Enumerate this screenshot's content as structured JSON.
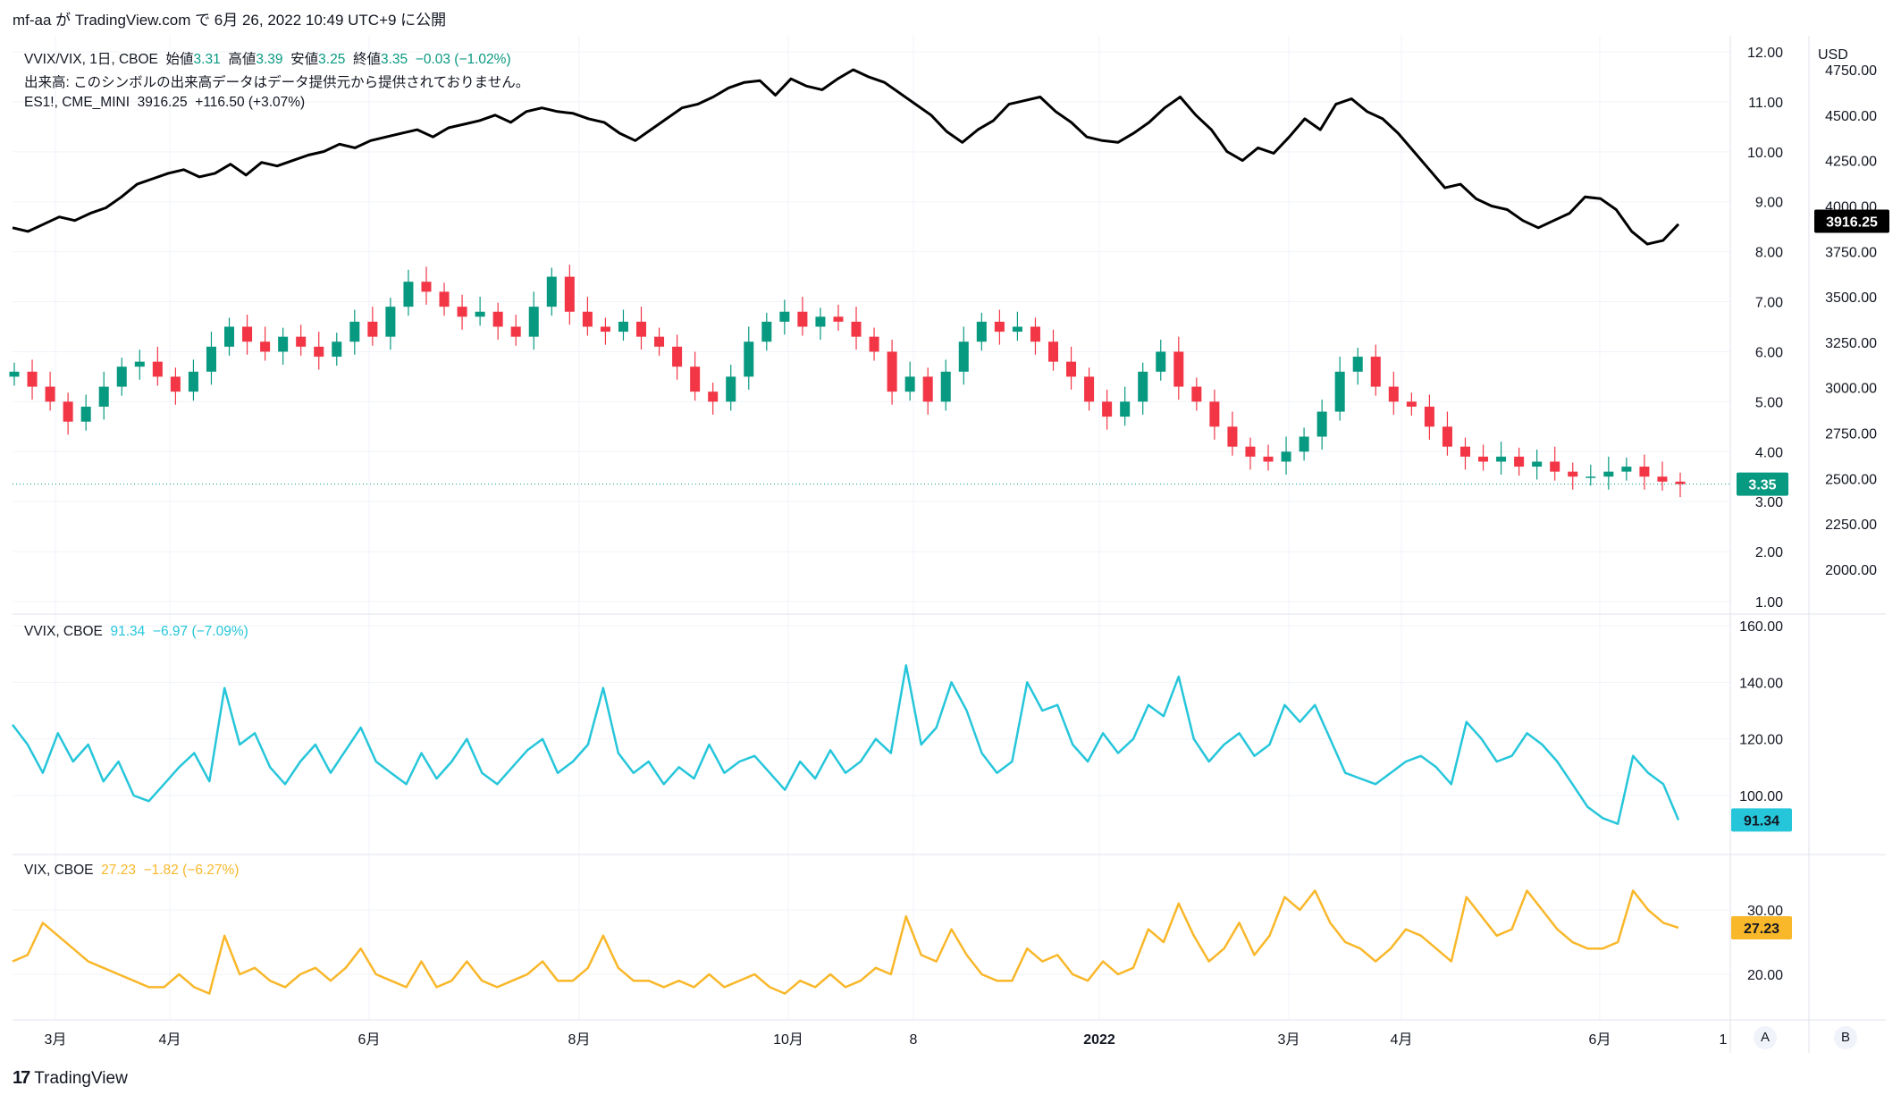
{
  "header": {
    "text": "mf-aa が TradingView.com で 6月 26, 2022 10:49 UTC+9 に公開"
  },
  "legend_main": {
    "symbol": "VVIX/VIX, 1日, CBOE",
    "open_label": "始値",
    "open": "3.31",
    "high_label": "高値",
    "high": "3.39",
    "low_label": "安値",
    "low": "3.25",
    "close_label": "終値",
    "close": "3.35",
    "change": "−0.03 (−1.02%)"
  },
  "legend_volume": "出来高: このシンボルの出来高データはデータ提供元から提供されておりません。",
  "legend_es": {
    "symbol": "ES1!, CME_MINI",
    "value": "3916.25",
    "change": "+116.50 (+3.07%)"
  },
  "legend_vvix": {
    "symbol": "VVIX, CBOE",
    "value": "91.34",
    "change": "−6.97 (−7.09%)"
  },
  "legend_vix": {
    "symbol": "VIX, CBOE",
    "value": "27.23",
    "change": "−1.82 (−6.27%)"
  },
  "axis": {
    "currency": "USD",
    "ratio_ticks": [
      "12.00",
      "11.00",
      "10.00",
      "9.00",
      "8.00",
      "7.00",
      "6.00",
      "5.00",
      "4.00",
      "3.00",
      "2.00",
      "1.00"
    ],
    "es_ticks": [
      "4750.00",
      "4500.00",
      "4250.00",
      "4000.00",
      "3750.00",
      "3500.00",
      "3250.00",
      "3000.00",
      "2750.00",
      "2500.00",
      "2250.00",
      "2000.00"
    ],
    "vvix_ticks": [
      "160.00",
      "140.00",
      "120.00",
      "100.00"
    ],
    "vix_ticks": [
      "30.00",
      "20.00"
    ],
    "x_ticks": [
      "3月",
      "4月",
      "6月",
      "8月",
      "10月",
      "8",
      "2022",
      "3月",
      "4月",
      "6月",
      "1"
    ],
    "scale_buttons": [
      "A",
      "B"
    ]
  },
  "badges": {
    "es": "3916.25",
    "ratio": "3.35",
    "vvix": "91.34",
    "vix": "27.23"
  },
  "colors": {
    "up": "#089981",
    "down": "#f23645",
    "es": "#000000",
    "vvix": "#26c6da",
    "vix": "#f9b72a",
    "grid": "#f0f3fa"
  },
  "footer": {
    "brand": "TradingView"
  },
  "chart_data": [
    {
      "type": "line",
      "series": [
        {
          "name": "ES1!, CME_MINI",
          "values": [
            3880,
            3860,
            3900,
            3940,
            3920,
            3960,
            3990,
            4050,
            4120,
            4150,
            4180,
            4200,
            4160,
            4180,
            4230,
            4170,
            4240,
            4220,
            4250,
            4280,
            4300,
            4340,
            4320,
            4360,
            4380,
            4400,
            4420,
            4380,
            4430,
            4450,
            4470,
            4500,
            4460,
            4520,
            4540,
            4520,
            4510,
            4480,
            4460,
            4400,
            4360,
            4420,
            4480,
            4540,
            4560,
            4600,
            4650,
            4680,
            4690,
            4610,
            4700,
            4660,
            4640,
            4700,
            4750,
            4710,
            4680,
            4620,
            4560,
            4500,
            4410,
            4350,
            4420,
            4470,
            4560,
            4580,
            4600,
            4520,
            4460,
            4380,
            4360,
            4350,
            4400,
            4460,
            4540,
            4600,
            4500,
            4420,
            4300,
            4250,
            4320,
            4290,
            4380,
            4480,
            4420,
            4560,
            4590,
            4520,
            4480,
            4400,
            4300,
            4200,
            4100,
            4120,
            4040,
            4000,
            3980,
            3920,
            3880,
            3920,
            3960,
            4050,
            4040,
            3980,
            3860,
            3790,
            3810,
            3900
          ]
        }
      ],
      "ylim": [
        1875,
        4875
      ]
    },
    {
      "type": "candlestick",
      "x_labels": [
        "3月",
        "4月",
        "6月",
        "8月",
        "10月",
        "8",
        "2022",
        "3月",
        "4月",
        "6月"
      ],
      "close": [
        5.6,
        5.3,
        5.0,
        4.6,
        4.9,
        5.3,
        5.7,
        5.8,
        5.5,
        5.2,
        5.6,
        6.1,
        6.5,
        6.2,
        6.0,
        6.3,
        6.1,
        5.9,
        6.2,
        6.6,
        6.3,
        6.9,
        7.4,
        7.2,
        6.9,
        6.7,
        6.8,
        6.5,
        6.3,
        6.9,
        7.5,
        6.8,
        6.5,
        6.4,
        6.6,
        6.3,
        6.1,
        5.7,
        5.2,
        5.0,
        5.5,
        6.2,
        6.6,
        6.8,
        6.5,
        6.7,
        6.6,
        6.3,
        6.0,
        5.2,
        5.5,
        5.0,
        5.6,
        6.2,
        6.6,
        6.4,
        6.5,
        6.2,
        5.8,
        5.5,
        5.0,
        4.7,
        5.0,
        5.6,
        6.0,
        5.3,
        5.0,
        4.5,
        4.1,
        3.9,
        3.8,
        4.0,
        4.3,
        4.8,
        5.6,
        5.9,
        5.3,
        5.0,
        4.9,
        4.5,
        4.1,
        3.9,
        3.8,
        3.9,
        3.7,
        3.8,
        3.6,
        3.5,
        3.5,
        3.6,
        3.7,
        3.5,
        3.4,
        3.35
      ]
    },
    {
      "type": "line",
      "series": [
        {
          "name": "VVIX, CBOE",
          "values": [
            125,
            118,
            108,
            122,
            112,
            118,
            105,
            112,
            100,
            98,
            104,
            110,
            115,
            105,
            138,
            118,
            122,
            110,
            104,
            112,
            118,
            108,
            116,
            124,
            112,
            108,
            104,
            115,
            106,
            112,
            120,
            108,
            104,
            110,
            116,
            120,
            108,
            112,
            118,
            138,
            115,
            108,
            112,
            104,
            110,
            106,
            118,
            108,
            112,
            114,
            108,
            102,
            112,
            106,
            116,
            108,
            112,
            120,
            115,
            146,
            118,
            124,
            140,
            130,
            115,
            108,
            112,
            140,
            130,
            132,
            118,
            112,
            122,
            115,
            120,
            132,
            128,
            142,
            120,
            112,
            118,
            122,
            114,
            118,
            132,
            126,
            132,
            120,
            108,
            106,
            104,
            108,
            112,
            114,
            110,
            104,
            126,
            120,
            112,
            114,
            122,
            118,
            112,
            104,
            96,
            92,
            90,
            114,
            108,
            104,
            91.34
          ]
        }
      ],
      "ylim": [
        85,
        165
      ]
    },
    {
      "type": "line",
      "series": [
        {
          "name": "VIX, CBOE",
          "values": [
            22,
            23,
            28,
            26,
            24,
            22,
            21,
            20,
            19,
            18,
            18,
            20,
            18,
            17,
            26,
            20,
            21,
            19,
            18,
            20,
            21,
            19,
            21,
            24,
            20,
            19,
            18,
            22,
            18,
            19,
            22,
            19,
            18,
            19,
            20,
            22,
            19,
            19,
            21,
            26,
            21,
            19,
            19,
            18,
            19,
            18,
            20,
            18,
            19,
            20,
            18,
            17,
            19,
            18,
            20,
            18,
            19,
            21,
            20,
            29,
            23,
            22,
            27,
            23,
            20,
            19,
            19,
            24,
            22,
            23,
            20,
            19,
            22,
            20,
            21,
            27,
            25,
            31,
            26,
            22,
            24,
            28,
            23,
            26,
            32,
            30,
            33,
            28,
            25,
            24,
            22,
            24,
            27,
            26,
            24,
            22,
            32,
            29,
            26,
            27,
            33,
            30,
            27,
            25,
            24,
            24,
            25,
            33,
            30,
            28,
            27.23
          ]
        }
      ],
      "ylim": [
        12,
        38
      ]
    }
  ]
}
